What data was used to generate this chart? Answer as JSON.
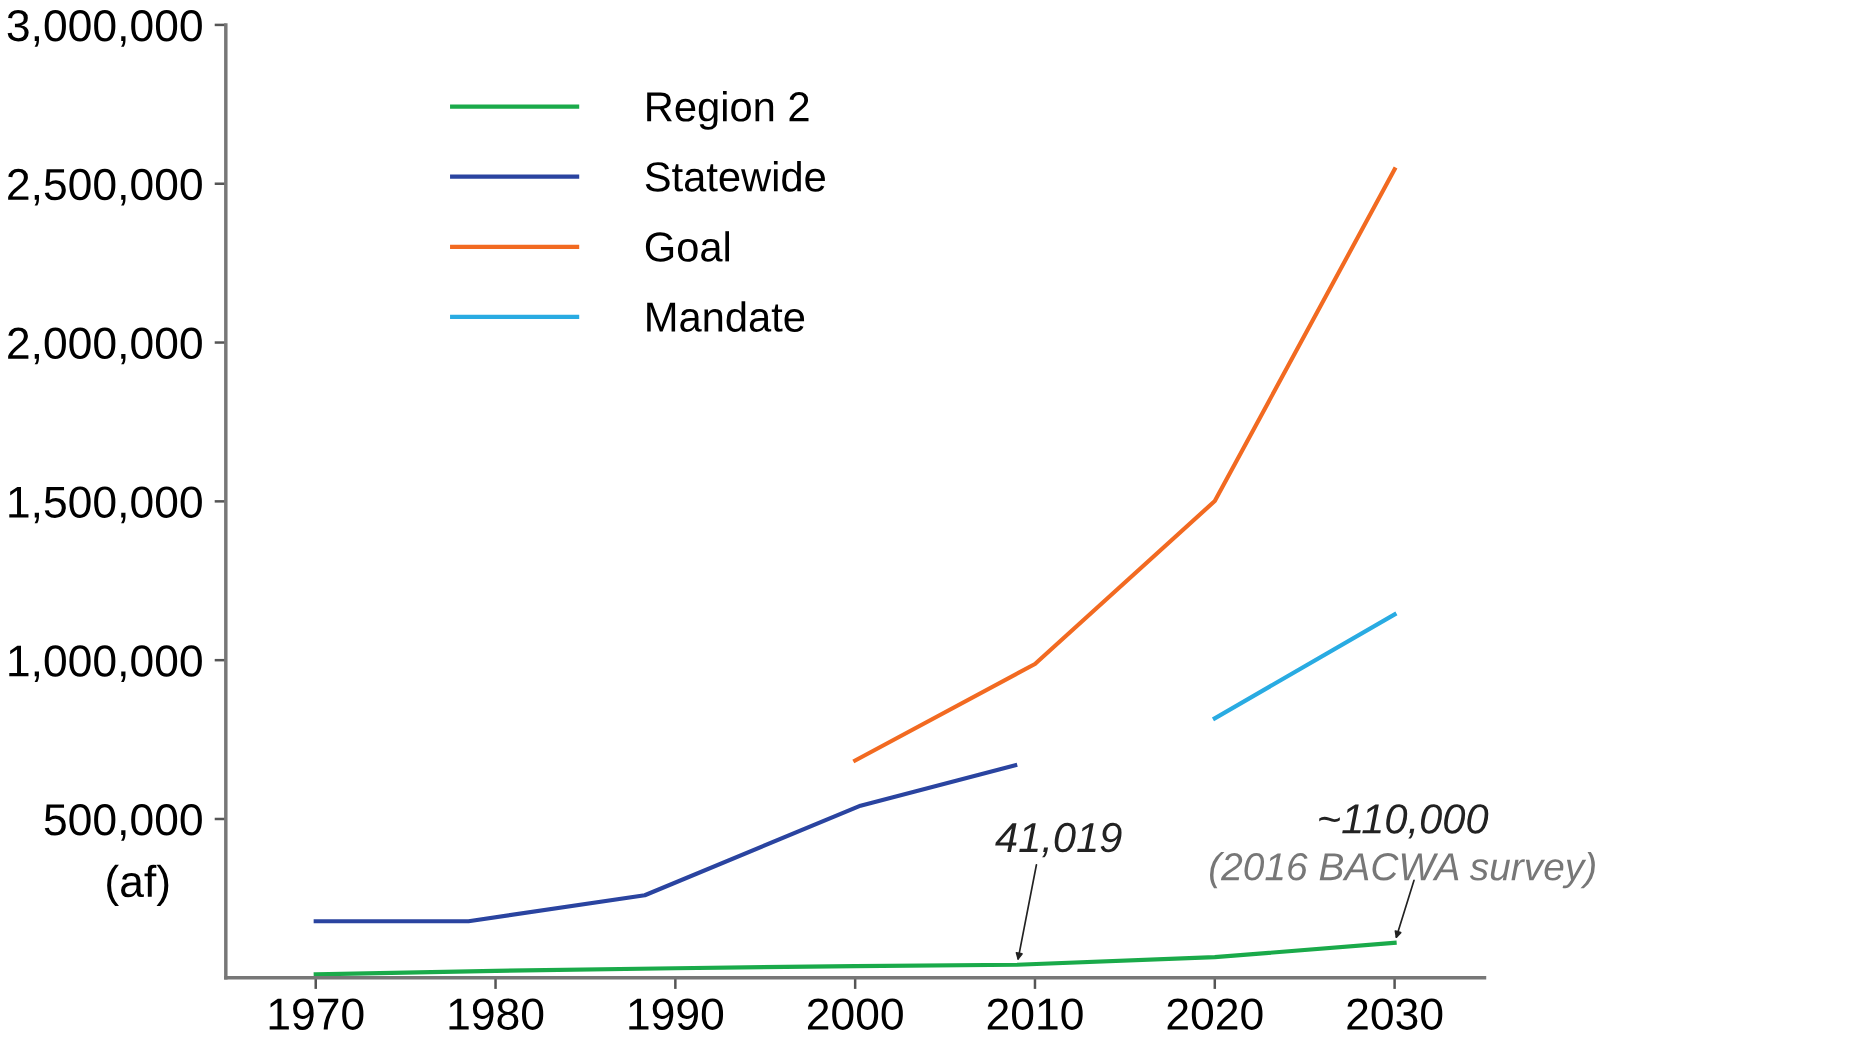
{
  "chart_data": {
    "type": "line",
    "ylabel": "(af)",
    "xlim": [
      1965,
      2035
    ],
    "xticks": [
      1970,
      1980,
      1990,
      2000,
      2010,
      2020,
      2030
    ],
    "ylim": [
      0,
      3000000
    ],
    "yticks": [
      {
        "value": 500000,
        "label": "500,000"
      },
      {
        "value": 1000000,
        "label": "1,000,000"
      },
      {
        "value": 1500000,
        "label": "1,500,000"
      },
      {
        "value": 2000000,
        "label": "2,000,000"
      },
      {
        "value": 2500000,
        "label": "2,500,000"
      },
      {
        "value": 3000000,
        "label": "3,000,000"
      }
    ],
    "grid": false,
    "legend": "top left",
    "line_style": "solid",
    "marker": "none",
    "series": [
      {
        "name": "Region 2",
        "color": "#1aaa4a",
        "x": [
          1970,
          1980,
          1990,
          2000,
          2009,
          2020,
          2030
        ],
        "values": [
          11000,
          22000,
          30000,
          37000,
          41019,
          65000,
          110000
        ]
      },
      {
        "name": "Statewide",
        "color": "#2a44a0",
        "x": [
          1970,
          1978.5,
          1988.3,
          2000.3,
          2008.9
        ],
        "values": [
          178000,
          178000,
          260000,
          542000,
          669000
        ]
      },
      {
        "name": "Goal",
        "color": "#f26a21",
        "x": [
          2000,
          2010,
          2020,
          2030
        ],
        "values": [
          684000,
          988000,
          1501000,
          2545000
        ]
      },
      {
        "name": "Mandate",
        "color": "#29abe2",
        "x": [
          2020,
          2030
        ],
        "values": [
          817000,
          1144000
        ]
      }
    ],
    "annotations": [
      {
        "text": "41,019",
        "x": 2009,
        "y": 41019
      },
      "~110,000",
      "(2016 BACWA survey)"
    ]
  }
}
